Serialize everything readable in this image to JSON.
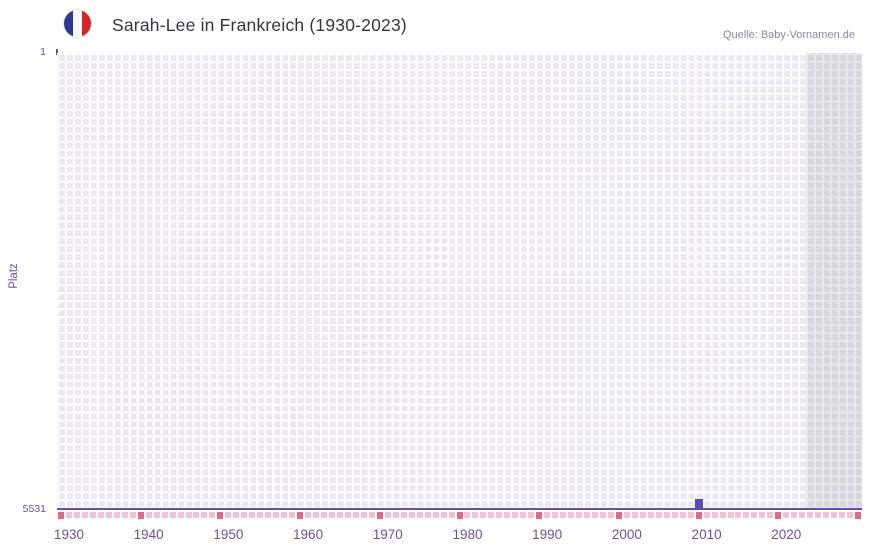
{
  "header": {
    "title": "Sarah-Lee in Frankreich (1930-2023)",
    "source": "Quelle: Baby-Vornamen.de",
    "flag_icon": "france-flag-icon"
  },
  "axes": {
    "y_label": "Platz",
    "y_top_tick": "1",
    "y_bottom_tick": "5531"
  },
  "chart_data": {
    "type": "bar",
    "title": "Sarah-Lee in Frankreich (1930-2023)",
    "xlabel": "",
    "ylabel": "Platz",
    "y_axis": {
      "top_value": 1,
      "bottom_value": 5531,
      "inverted": true
    },
    "ylim": [
      1,
      5531
    ],
    "x_axis": {
      "start_year": 1929,
      "end_year": 2029,
      "data_start_year": 1930,
      "data_end_year": 2023,
      "tick_label_years": [
        1930,
        1940,
        1950,
        1960,
        1970,
        1980,
        1990,
        2000,
        2010,
        2020
      ],
      "major_tick_every": 10
    },
    "series": [
      {
        "name": "Sarah-Lee",
        "points": [
          {
            "year": 2009,
            "rank": 5400
          }
        ]
      }
    ],
    "shaded_from_year": 2023,
    "grid": true,
    "legend": "none",
    "colors": {
      "plot_bg": "#ebe8f4",
      "grid": "#ffffff",
      "bar": "#584abc",
      "axis": "#5e51ab",
      "tick_minor": "#f3c3d2",
      "tick_major": "#e0698a",
      "text_purple": "#6b50a5",
      "shade": "rgba(151,148,166,0.22)"
    }
  }
}
